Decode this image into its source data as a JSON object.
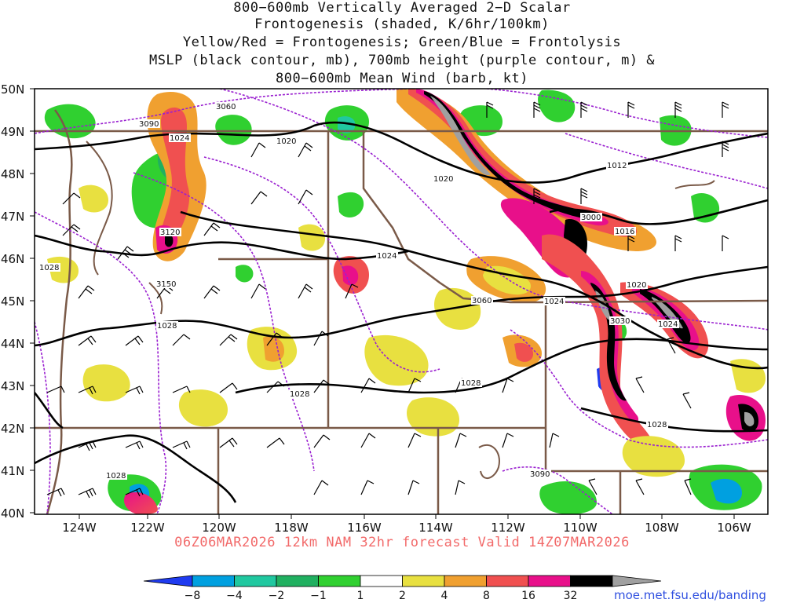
{
  "title_lines": [
    "800−600mb Vertically Averaged 2−D Scalar",
    "Frontogenesis (shaded, K/6hr/100km)",
    "Yellow/Red = Frontogenesis;  Green/Blue = Frontolysis",
    "MSLP (black contour, mb), 700mb height (purple contour, m) &",
    "800−600mb Mean Wind (barb, kt)"
  ],
  "lat_labels": [
    "50N",
    "49N",
    "48N",
    "47N",
    "46N",
    "45N",
    "44N",
    "43N",
    "42N",
    "41N",
    "40N"
  ],
  "lon_labels": [
    "124W",
    "122W",
    "120W",
    "118W",
    "116W",
    "114W",
    "112W",
    "110W",
    "108W",
    "106W"
  ],
  "valid_line": "06Z06MAR2026 12km NAM 32hr forecast Valid 14Z07MAR2026",
  "credit": "moe.met.fsu.edu/banding",
  "colorbar": {
    "labels": [
      "−8",
      "−4",
      "−2",
      "−1",
      "1",
      "2",
      "4",
      "8",
      "16",
      "32"
    ],
    "colors": [
      "#1f3bf0",
      "#00a0e0",
      "#20c8a0",
      "#20b060",
      "#30d030",
      "#ffffff",
      "#e8e040",
      "#f0a030",
      "#f05050",
      "#e8108a",
      "#000000",
      "#a0a0a0"
    ]
  },
  "mslp_labels": [
    "1024",
    "1020",
    "1020",
    "1012",
    "1016",
    "1020",
    "1024",
    "1024",
    "1028",
    "1028",
    "1028",
    "1028",
    "1028",
    "1028",
    "1024"
  ],
  "height_labels": [
    "3060",
    "3090",
    "3120",
    "3150",
    "3000",
    "3030",
    "3060",
    "3090"
  ],
  "colors": {
    "mslp": "#000000",
    "height": "#9a20d0",
    "borders": "#7a5a48",
    "title": "#111111",
    "valid": "#f26a6a",
    "credit": "#3050e0"
  }
}
